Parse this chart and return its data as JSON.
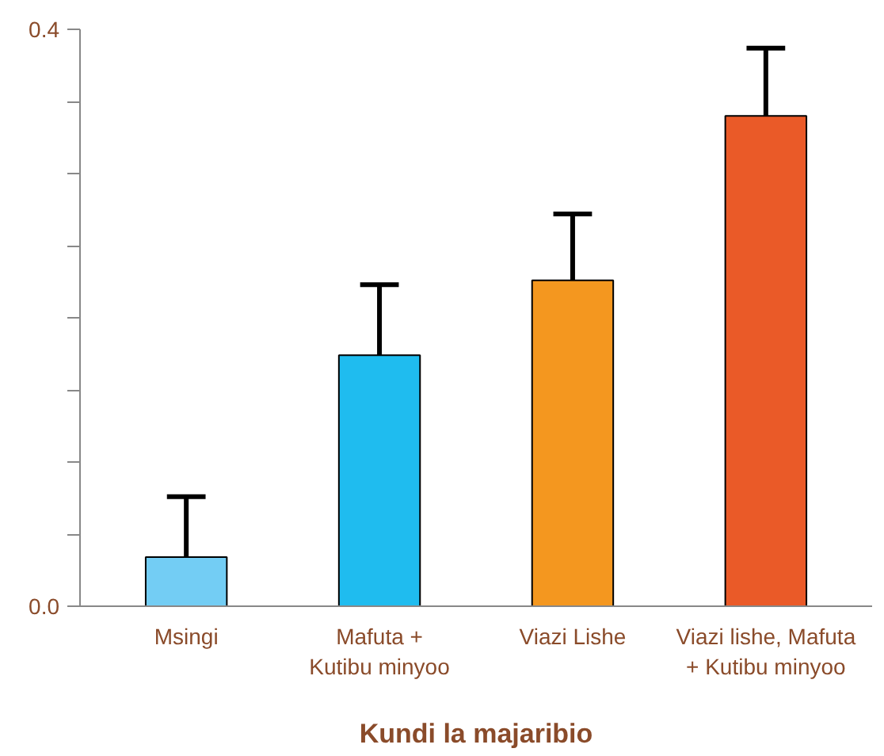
{
  "chart_data": {
    "type": "bar",
    "xlabel": "Kundi la majaribio",
    "categories": [
      "Msingi",
      "Mafuta +\nKutibu minyoo",
      "Viazi Lishe",
      "Viazi lishe, Mafuta\n+ Kutibu minyoo"
    ],
    "values": [
      0.034,
      0.174,
      0.226,
      0.34
    ],
    "colors": [
      "#73cdf4",
      "#1fbcef",
      "#f4971f",
      "#ea5a28"
    ],
    "errors": [
      [
        0.034,
        0.076
      ],
      [
        0.174,
        0.223
      ],
      [
        0.226,
        0.272
      ],
      [
        0.34,
        0.387
      ]
    ],
    "ylim": [
      0,
      0.4
    ],
    "yticks": [
      {
        "value": 0,
        "label": "0.0"
      },
      {
        "value": 0.05,
        "label": null
      },
      {
        "value": 0.1,
        "label": null
      },
      {
        "value": 0.15,
        "label": null
      },
      {
        "value": 0.2,
        "label": null
      },
      {
        "value": 0.25,
        "label": null
      },
      {
        "value": 0.3,
        "label": null
      },
      {
        "value": 0.35,
        "label": null
      },
      {
        "value": 0.4,
        "label": "0.4"
      }
    ],
    "grid": false
  }
}
